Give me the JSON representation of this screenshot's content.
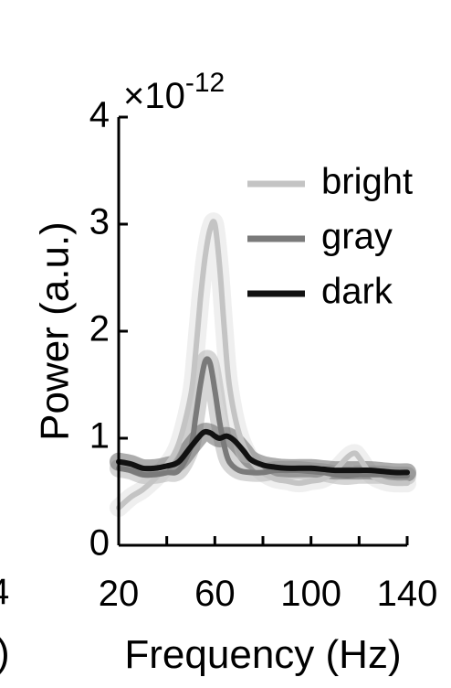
{
  "chart_data": {
    "type": "line",
    "xlabel": "Frequency (Hz)",
    "ylabel": "Power (a.u.)",
    "y_multiplier_prefix": "×10",
    "y_multiplier_exponent": "-12",
    "xlim": [
      20,
      140
    ],
    "ylim": [
      0,
      4
    ],
    "xticks": [
      "20",
      "60",
      "100",
      "140"
    ],
    "yticks": [
      "0",
      "1",
      "2",
      "3",
      "4"
    ],
    "legend_position": "top-right",
    "series": [
      {
        "name": "bright",
        "color": "#c4c4c4",
        "band_color": "#e2e2e2",
        "x": [
          20,
          25,
          30,
          35,
          40,
          45,
          50,
          52,
          54,
          56,
          58,
          60,
          62,
          64,
          66,
          70,
          75,
          80,
          85,
          90,
          95,
          100,
          105,
          110,
          115,
          118,
          120,
          125,
          130,
          135,
          140
        ],
        "y": [
          0.35,
          0.45,
          0.52,
          0.62,
          0.75,
          0.95,
          1.4,
          1.8,
          2.3,
          2.7,
          2.95,
          3.0,
          2.6,
          2.0,
          1.5,
          1.05,
          0.8,
          0.68,
          0.62,
          0.6,
          0.58,
          0.6,
          0.62,
          0.7,
          0.82,
          0.86,
          0.82,
          0.66,
          0.6,
          0.58,
          0.58
        ]
      },
      {
        "name": "gray",
        "color": "#7a7a7a",
        "band_color": "#b4b4b4",
        "x": [
          20,
          25,
          30,
          35,
          40,
          45,
          50,
          52,
          54,
          56,
          58,
          60,
          62,
          64,
          66,
          70,
          75,
          80,
          85,
          90,
          95,
          100,
          105,
          110,
          115,
          120,
          125,
          130,
          135,
          140
        ],
        "y": [
          0.72,
          0.7,
          0.66,
          0.66,
          0.68,
          0.7,
          0.92,
          1.2,
          1.5,
          1.72,
          1.7,
          1.45,
          1.15,
          0.92,
          0.78,
          0.7,
          0.68,
          0.68,
          0.7,
          0.7,
          0.7,
          0.69,
          0.68,
          0.66,
          0.65,
          0.66,
          0.66,
          0.66,
          0.65,
          0.65
        ]
      },
      {
        "name": "dark",
        "color": "#111111",
        "band_color": "#6a6a6a",
        "x": [
          20,
          25,
          30,
          35,
          40,
          45,
          50,
          55,
          58,
          60,
          62,
          65,
          68,
          72,
          75,
          80,
          85,
          90,
          95,
          100,
          105,
          110,
          115,
          120,
          125,
          130,
          135,
          140
        ],
        "y": [
          0.78,
          0.76,
          0.72,
          0.72,
          0.74,
          0.78,
          0.92,
          1.05,
          1.05,
          1.02,
          1.0,
          1.02,
          0.98,
          0.88,
          0.8,
          0.75,
          0.73,
          0.72,
          0.72,
          0.72,
          0.71,
          0.7,
          0.7,
          0.7,
          0.7,
          0.69,
          0.68,
          0.68
        ]
      }
    ]
  },
  "edge_fragments": {
    "left_tick": "4",
    "left_paren": ")"
  }
}
